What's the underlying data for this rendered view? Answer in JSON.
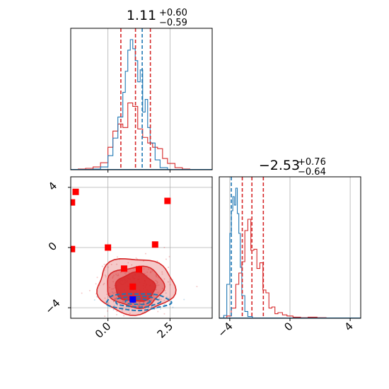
{
  "colors": {
    "posterior": "#d62728",
    "reference": "#1f77b4",
    "square_red": "#ff0000",
    "square_blue": "#0000ff",
    "grid": "#b0b0b0",
    "axes": "#000000"
  },
  "chart_data": [
    {
      "panel": "marginal-param-1",
      "type": "histogram",
      "title_value": "1.11",
      "title_plus": "+0.60",
      "title_minus": "−0.59",
      "xlim": [
        -1.5,
        4.2
      ],
      "grid": true,
      "series": [
        {
          "color": "#d62728",
          "quantile_lines": [
            0.52,
            1.11,
            1.71
          ],
          "bin_edges": [
            -1.2,
            -0.9,
            -0.6,
            -0.3,
            0.0,
            0.2,
            0.4,
            0.6,
            0.8,
            1.0,
            1.2,
            1.4,
            1.6,
            1.8,
            2.0,
            2.2,
            2.4,
            2.7,
            3.0,
            3.3
          ],
          "counts": [
            1,
            2,
            4,
            10,
            32,
            55,
            65,
            60,
            95,
            90,
            58,
            46,
            38,
            32,
            30,
            16,
            9,
            3,
            1
          ]
        },
        {
          "color": "#1f77b4",
          "quantile_lines": [
            1.38
          ],
          "bin_edges": [
            -0.6,
            -0.3,
            0.0,
            0.2,
            0.4,
            0.6,
            0.7,
            0.8,
            0.9,
            1.0,
            1.1,
            1.2,
            1.3,
            1.4,
            1.5,
            1.6,
            1.7,
            1.9,
            2.1,
            2.4
          ],
          "counts": [
            1,
            4,
            20,
            45,
            75,
            110,
            140,
            170,
            185,
            172,
            155,
            125,
            142,
            82,
            100,
            60,
            38,
            14,
            3
          ]
        }
      ]
    },
    {
      "panel": "marginal-param-2",
      "type": "histogram",
      "title_value": "−2.53",
      "title_plus": "+0.76",
      "title_minus": "−0.64",
      "xlim": [
        -4.7,
        4.7
      ],
      "xticks": [
        -4,
        0,
        4
      ],
      "xtick_labels": [
        "−4",
        "0",
        "4"
      ],
      "grid": true,
      "series": [
        {
          "color": "#d62728",
          "quantile_lines": [
            -3.17,
            -2.53,
            -1.77
          ],
          "bin_edges": [
            -4.2,
            -3.9,
            -3.6,
            -3.4,
            -3.2,
            -3.0,
            -2.8,
            -2.6,
            -2.4,
            -2.2,
            -2.0,
            -1.8,
            -1.6,
            -1.4,
            -1.2,
            -1.0,
            -0.8,
            -0.5,
            -0.2,
            0.2,
            0.7,
            1.2,
            1.8,
            2.4
          ],
          "counts": [
            4,
            18,
            60,
            80,
            100,
            155,
            175,
            120,
            122,
            88,
            98,
            50,
            45,
            18,
            20,
            8,
            10,
            6,
            4,
            2,
            1,
            2,
            1
          ]
        },
        {
          "color": "#1f77b4",
          "quantile_lines": [
            -3.9
          ],
          "bin_edges": [
            -4.4,
            -4.2,
            -4.0,
            -3.9,
            -3.8,
            -3.7,
            -3.6,
            -3.5,
            -3.4,
            -3.3,
            -3.2,
            -3.0,
            -2.8,
            -2.5
          ],
          "counts": [
            5,
            60,
            150,
            190,
            215,
            200,
            230,
            185,
            150,
            90,
            40,
            12,
            3
          ]
        }
      ]
    },
    {
      "panel": "joint-param-1-param-2",
      "type": "scatter",
      "xlim": [
        -1.5,
        4.2
      ],
      "ylim": [
        -4.7,
        4.7
      ],
      "xticks": [
        0.0,
        2.5
      ],
      "xtick_labels": [
        "0.0",
        "2.5"
      ],
      "yticks": [
        -4,
        0,
        4
      ],
      "ytick_labels": [
        "−4",
        "0",
        "4"
      ],
      "grid": true,
      "contours": {
        "color": "#d62728",
        "levels": [
          {
            "center": [
              1.1,
              -2.55
            ],
            "rx": 1.55,
            "ry": 1.85
          },
          {
            "center": [
              1.1,
              -2.6
            ],
            "rx": 1.15,
            "ry": 1.35
          },
          {
            "center": [
              1.1,
              -2.65
            ],
            "rx": 0.8,
            "ry": 0.95
          }
        ]
      },
      "reference_contours": {
        "color": "#1f77b4",
        "levels": [
          {
            "center": [
              1.2,
              -3.6
            ],
            "rx": 1.3,
            "ry": 0.55
          },
          {
            "center": [
              1.2,
              -3.6
            ],
            "rx": 0.9,
            "ry": 0.35
          },
          {
            "center": [
              1.2,
              -3.6
            ],
            "rx": 0.5,
            "ry": 0.18
          }
        ]
      },
      "points_red": [
        {
          "x": -1.3,
          "y": 3.7
        },
        {
          "x": -1.45,
          "y": 3.0
        },
        {
          "x": -1.45,
          "y": -0.1
        },
        {
          "x": 0.0,
          "y": 0.0
        },
        {
          "x": 1.9,
          "y": 0.2
        },
        {
          "x": 2.4,
          "y": 3.1
        },
        {
          "x": 0.65,
          "y": -1.4
        },
        {
          "x": 1.25,
          "y": -1.45
        },
        {
          "x": 1.0,
          "y": -2.6
        }
      ],
      "points_blue": [
        {
          "x": 1.0,
          "y": -3.45
        }
      ]
    }
  ]
}
